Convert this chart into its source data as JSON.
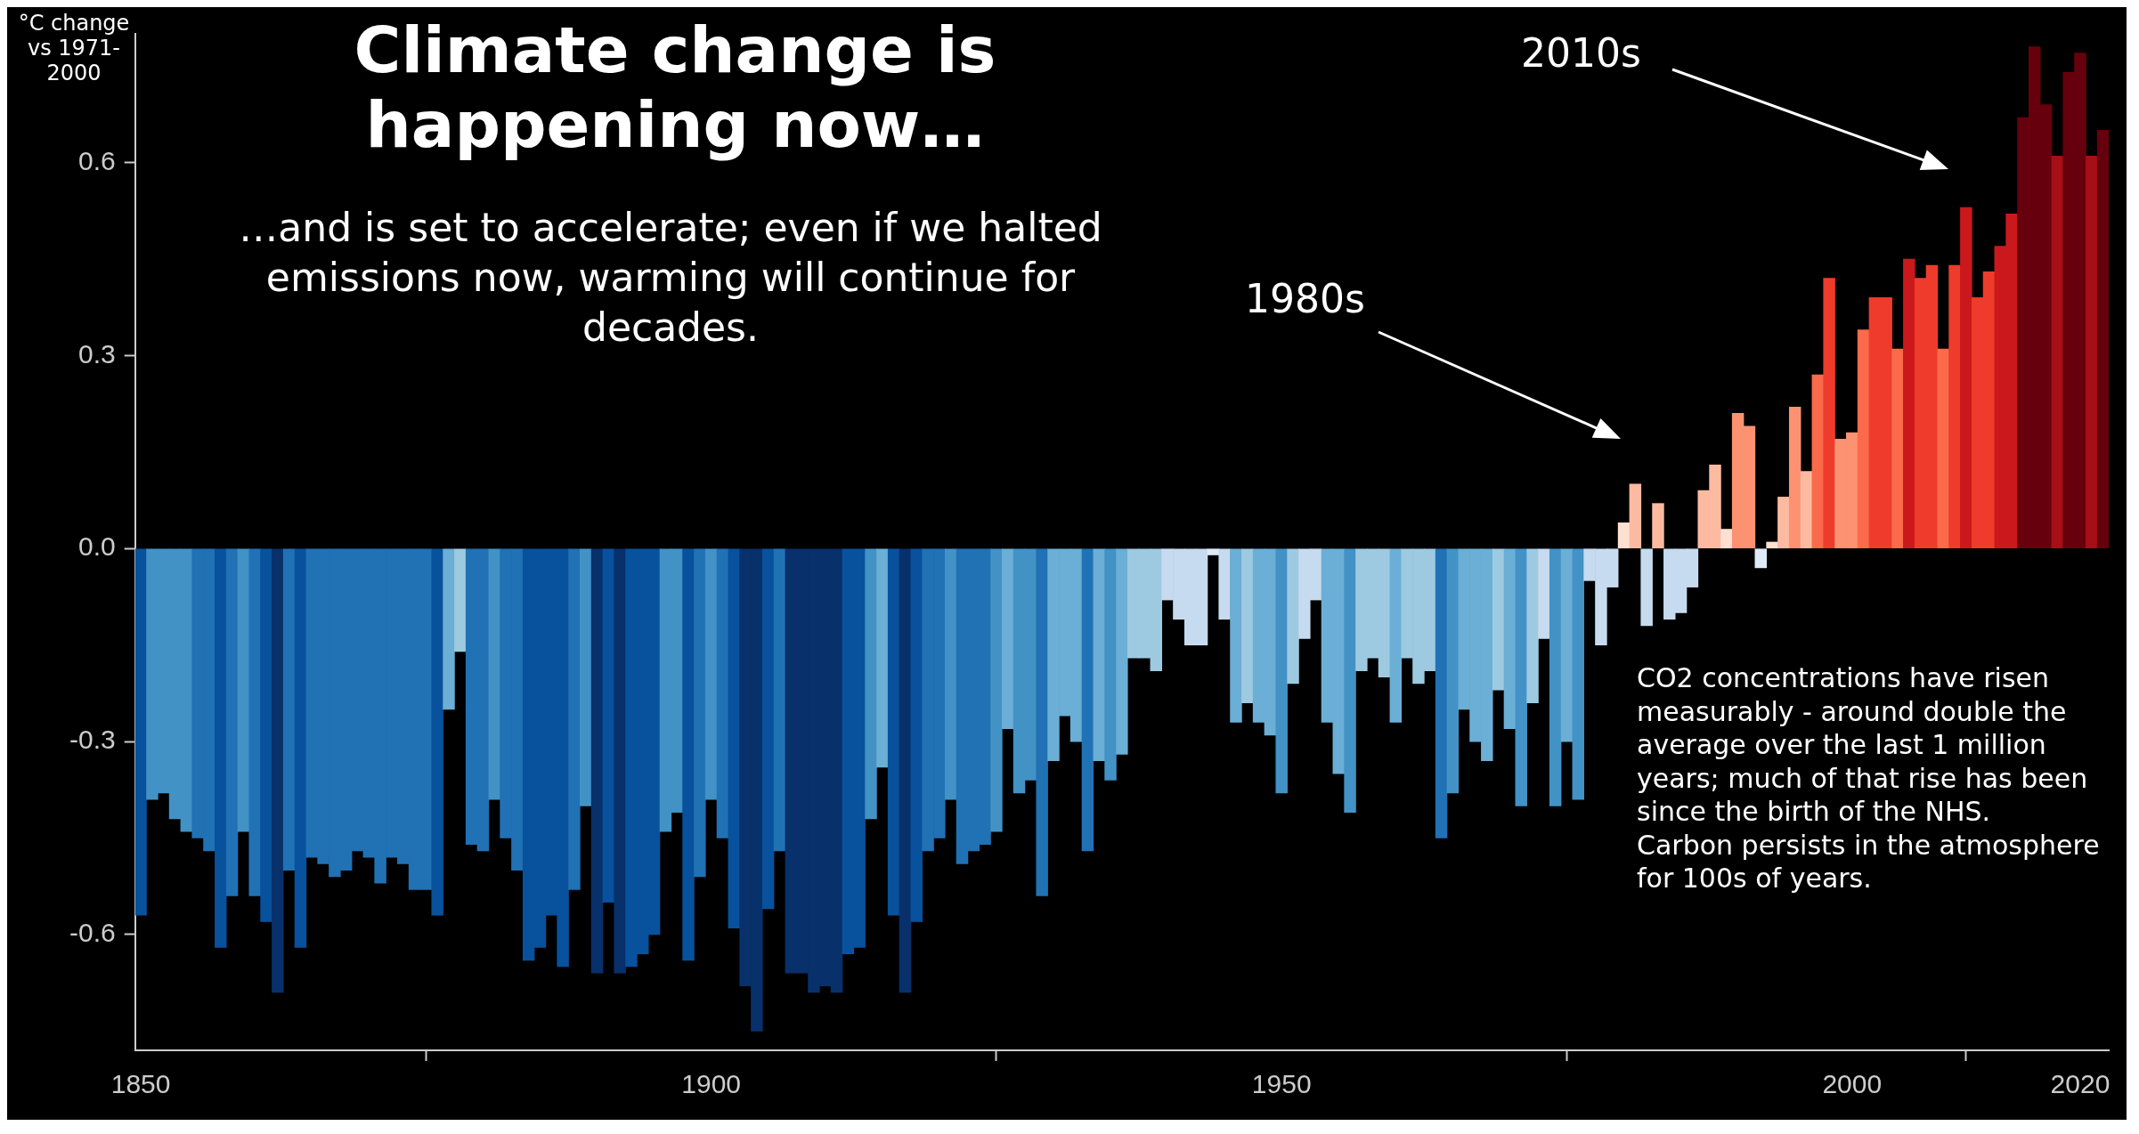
{
  "chart_data": {
    "type": "bar",
    "title": "Climate change is happening now…",
    "subtitle": "…and is set to accelerate; even if we halted emissions now, warming will continue for decades.",
    "ylabel": "°C change vs 1971-2000",
    "annotations": [
      "1980s",
      "2010s",
      "CO2 concentrations have risen measurably - around double the average over the last 1 million years; much of that rise has been since the birth of the NHS.\nCarbon persists in the atmosphere for 100s of years."
    ],
    "x": [
      1850,
      1851,
      1852,
      1853,
      1854,
      1855,
      1856,
      1857,
      1858,
      1859,
      1860,
      1861,
      1862,
      1863,
      1864,
      1865,
      1866,
      1867,
      1868,
      1869,
      1870,
      1871,
      1872,
      1873,
      1874,
      1875,
      1876,
      1877,
      1878,
      1879,
      1880,
      1881,
      1882,
      1883,
      1884,
      1885,
      1886,
      1887,
      1888,
      1889,
      1890,
      1891,
      1892,
      1893,
      1894,
      1895,
      1896,
      1897,
      1898,
      1899,
      1900,
      1901,
      1902,
      1903,
      1904,
      1905,
      1906,
      1907,
      1908,
      1909,
      1910,
      1911,
      1912,
      1913,
      1914,
      1915,
      1916,
      1917,
      1918,
      1919,
      1920,
      1921,
      1922,
      1923,
      1924,
      1925,
      1926,
      1927,
      1928,
      1929,
      1930,
      1931,
      1932,
      1933,
      1934,
      1935,
      1936,
      1937,
      1938,
      1939,
      1940,
      1941,
      1942,
      1943,
      1944,
      1945,
      1946,
      1947,
      1948,
      1949,
      1950,
      1951,
      1952,
      1953,
      1954,
      1955,
      1956,
      1957,
      1958,
      1959,
      1960,
      1961,
      1962,
      1963,
      1964,
      1965,
      1966,
      1967,
      1968,
      1969,
      1970,
      1971,
      1972,
      1973,
      1974,
      1975,
      1976,
      1977,
      1978,
      1979,
      1980,
      1981,
      1982,
      1983,
      1984,
      1985,
      1986,
      1987,
      1988,
      1989,
      1990,
      1991,
      1992,
      1993,
      1994,
      1995,
      1996,
      1997,
      1998,
      1999,
      2000,
      2001,
      2002,
      2003,
      2004,
      2005,
      2006,
      2007,
      2008,
      2009,
      2010,
      2011,
      2012,
      2013,
      2014,
      2015,
      2016,
      2017,
      2018,
      2019,
      2020,
      2021,
      2022
    ],
    "values": [
      -0.57,
      -0.39,
      -0.38,
      -0.42,
      -0.44,
      -0.45,
      -0.47,
      -0.62,
      -0.54,
      -0.44,
      -0.54,
      -0.58,
      -0.69,
      -0.5,
      -0.62,
      -0.48,
      -0.49,
      -0.51,
      -0.5,
      -0.47,
      -0.48,
      -0.52,
      -0.48,
      -0.49,
      -0.53,
      -0.53,
      -0.57,
      -0.25,
      -0.16,
      -0.46,
      -0.47,
      -0.39,
      -0.45,
      -0.5,
      -0.64,
      -0.62,
      -0.57,
      -0.65,
      -0.53,
      -0.4,
      -0.66,
      -0.55,
      -0.66,
      -0.65,
      -0.63,
      -0.6,
      -0.44,
      -0.41,
      -0.64,
      -0.51,
      -0.39,
      -0.45,
      -0.59,
      -0.68,
      -0.75,
      -0.56,
      -0.47,
      -0.66,
      -0.66,
      -0.69,
      -0.68,
      -0.69,
      -0.63,
      -0.62,
      -0.42,
      -0.34,
      -0.57,
      -0.69,
      -0.58,
      -0.47,
      -0.45,
      -0.39,
      -0.49,
      -0.47,
      -0.46,
      -0.44,
      -0.28,
      -0.38,
      -0.36,
      -0.54,
      -0.33,
      -0.26,
      -0.3,
      -0.47,
      -0.33,
      -0.36,
      -0.32,
      -0.17,
      -0.17,
      -0.19,
      -0.08,
      -0.11,
      -0.15,
      -0.15,
      -0.01,
      -0.11,
      -0.27,
      -0.24,
      -0.27,
      -0.29,
      -0.38,
      -0.21,
      -0.14,
      -0.08,
      -0.27,
      -0.35,
      -0.41,
      -0.19,
      -0.17,
      -0.2,
      -0.27,
      -0.17,
      -0.21,
      -0.19,
      -0.45,
      -0.38,
      -0.25,
      -0.3,
      -0.33,
      -0.22,
      -0.28,
      -0.4,
      -0.24,
      -0.14,
      -0.4,
      -0.3,
      -0.39,
      -0.05,
      -0.15,
      -0.06,
      0.04,
      0.1,
      -0.12,
      0.07,
      -0.11,
      -0.1,
      -0.06,
      0.09,
      0.13,
      0.03,
      0.21,
      0.19,
      -0.03,
      0.01,
      0.08,
      0.22,
      0.12,
      0.27,
      0.42,
      0.17,
      0.18,
      0.34,
      0.39,
      0.39,
      0.31,
      0.45,
      0.42,
      0.44,
      0.31,
      0.44,
      0.53,
      0.39,
      0.43,
      0.47,
      0.52,
      0.67,
      0.78,
      0.69,
      0.61,
      0.74,
      0.77,
      0.61,
      0.65
    ],
    "colors": [
      "#08519c",
      "#4292c6",
      "#4292c6",
      "#4292c6",
      "#4292c6",
      "#2171b5",
      "#2171b5",
      "#08519c",
      "#2171b5",
      "#4292c6",
      "#2171b5",
      "#08519c",
      "#08306b",
      "#2171b5",
      "#08519c",
      "#2171b5",
      "#2171b5",
      "#2171b5",
      "#2171b5",
      "#2171b5",
      "#2171b5",
      "#2171b5",
      "#2171b5",
      "#2171b5",
      "#2171b5",
      "#2171b5",
      "#08519c",
      "#6baed6",
      "#9ecae1",
      "#2171b5",
      "#2171b5",
      "#4292c6",
      "#2171b5",
      "#2171b5",
      "#08519c",
      "#08519c",
      "#08519c",
      "#08519c",
      "#2171b5",
      "#4292c6",
      "#08306b",
      "#08519c",
      "#08306b",
      "#08519c",
      "#08519c",
      "#08519c",
      "#4292c6",
      "#4292c6",
      "#08519c",
      "#2171b5",
      "#4292c6",
      "#2171b5",
      "#08519c",
      "#08306b",
      "#08306b",
      "#08519c",
      "#2171b5",
      "#08306b",
      "#08306b",
      "#08306b",
      "#08306b",
      "#08306b",
      "#08519c",
      "#08519c",
      "#4292c6",
      "#6baed6",
      "#08519c",
      "#08306b",
      "#08519c",
      "#2171b5",
      "#2171b5",
      "#4292c6",
      "#2171b5",
      "#2171b5",
      "#2171b5",
      "#4292c6",
      "#6baed6",
      "#4292c6",
      "#4292c6",
      "#2171b5",
      "#6baed6",
      "#6baed6",
      "#6baed6",
      "#2171b5",
      "#6baed6",
      "#4292c6",
      "#6baed6",
      "#9ecae1",
      "#9ecae1",
      "#9ecae1",
      "#c6dbef",
      "#c6dbef",
      "#c6dbef",
      "#c6dbef",
      "#deebf7",
      "#c6dbef",
      "#6baed6",
      "#9ecae1",
      "#6baed6",
      "#6baed6",
      "#4292c6",
      "#9ecae1",
      "#c6dbef",
      "#c6dbef",
      "#6baed6",
      "#6baed6",
      "#4292c6",
      "#9ecae1",
      "#9ecae1",
      "#9ecae1",
      "#6baed6",
      "#9ecae1",
      "#9ecae1",
      "#9ecae1",
      "#2171b5",
      "#4292c6",
      "#6baed6",
      "#6baed6",
      "#6baed6",
      "#9ecae1",
      "#6baed6",
      "#4292c6",
      "#9ecae1",
      "#c6dbef",
      "#4292c6",
      "#6baed6",
      "#4292c6",
      "#c6dbef",
      "#c6dbef",
      "#c6dbef",
      "#fee0d2",
      "#fcbba1",
      "#c6dbef",
      "#fcbba1",
      "#c6dbef",
      "#c6dbef",
      "#c6dbef",
      "#fcbba1",
      "#fcbba1",
      "#fee0d2",
      "#fc9272",
      "#fc9272",
      "#deebf7",
      "#fee0d2",
      "#fcbba1",
      "#fc9272",
      "#fcbba1",
      "#fb6a4a",
      "#ef3b2c",
      "#fc9272",
      "#fc9272",
      "#fb6a4a",
      "#ef3b2c",
      "#ef3b2c",
      "#fb6a4a",
      "#cb181d",
      "#ef3b2c",
      "#ef3b2c",
      "#fb6a4a",
      "#ef3b2c",
      "#cb181d",
      "#ef3b2c",
      "#ef3b2c",
      "#cb181d",
      "#cb181d",
      "#67000d",
      "#67000d",
      "#67000d",
      "#a50f15",
      "#67000d",
      "#67000d",
      "#a50f15",
      "#67000d"
    ],
    "xlim": [
      1849.5,
      2022.5
    ],
    "xticks": [
      1850,
      1900,
      1950,
      2000,
      2020
    ],
    "ylim": [
      -0.78,
      0.8
    ],
    "yticks": [
      -0.6,
      -0.3,
      {
        "value": 0,
        "label": "0.0"
      },
      0.3,
      0.6
    ]
  }
}
